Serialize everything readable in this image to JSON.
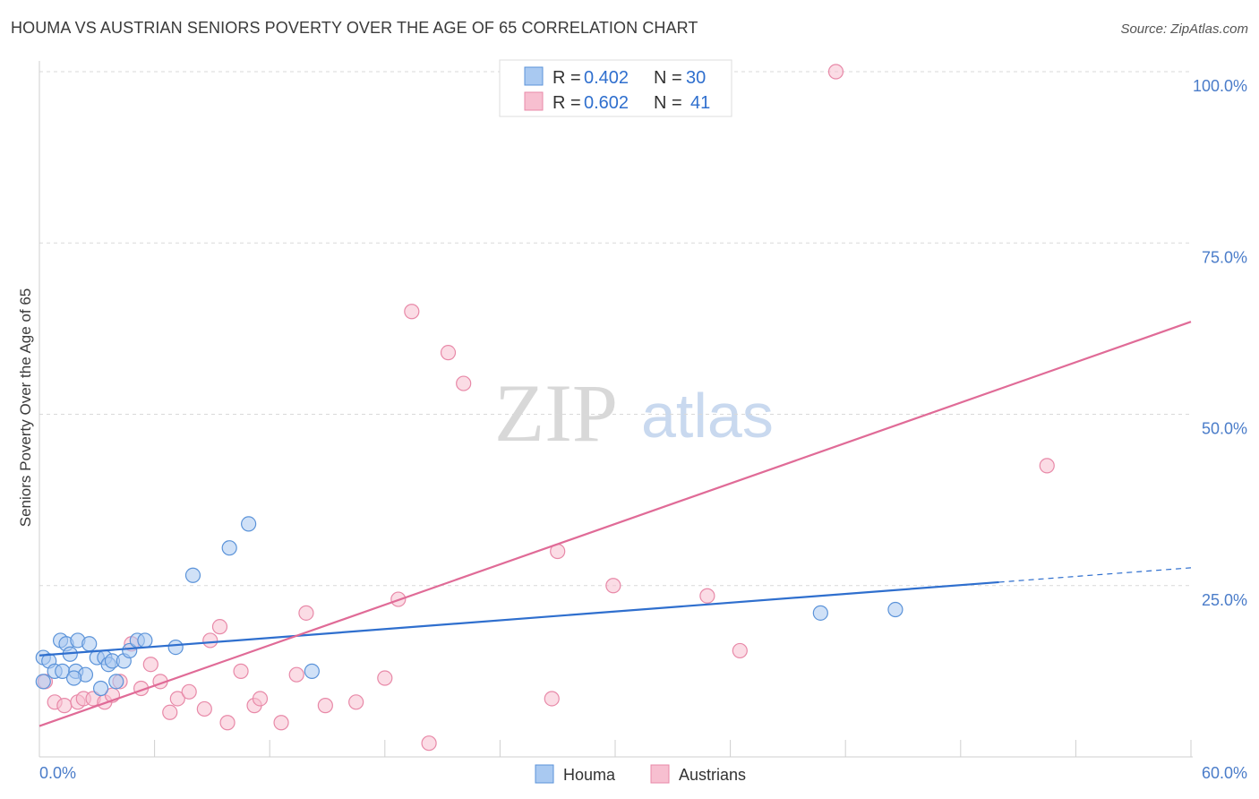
{
  "header": {
    "title": "HOUMA VS AUSTRIAN SENIORS POVERTY OVER THE AGE OF 65 CORRELATION CHART",
    "source": "Source: ZipAtlas.com"
  },
  "colors": {
    "houma_fill": "#a9c9f1",
    "houma_stroke": "#5b93d9",
    "houma_line": "#2f6fce",
    "austrians_fill": "#f7bfd0",
    "austrians_stroke": "#e889a8",
    "austrians_line": "#e06b97",
    "grid": "#d9d9d9",
    "tick_text": "#4a7cc9"
  },
  "legend": {
    "houma": {
      "r_label": "R = ",
      "r_value": "0.402",
      "n_label": "N = ",
      "n_value": "30"
    },
    "austrians": {
      "r_label": "R = ",
      "r_value": "0.602",
      "n_label": "N = ",
      "n_value": "41"
    }
  },
  "watermark": {
    "zip": "ZIP",
    "atlas": "atlas"
  },
  "chart_data": {
    "type": "scatter",
    "title": "HOUMA VS AUSTRIAN SENIORS POVERTY OVER THE AGE OF 65 CORRELATION CHART",
    "xlabel": "",
    "ylabel": "Seniors Poverty Over the Age of 65",
    "xlim": [
      0,
      60
    ],
    "ylim": [
      0,
      100
    ],
    "x_tick_labels": [
      "0.0%",
      "60.0%"
    ],
    "y_ticks": [
      25,
      50,
      75,
      100
    ],
    "y_tick_labels": [
      "25.0%",
      "50.0%",
      "75.0%",
      "100.0%"
    ],
    "grid": true,
    "legend_position": "top-center",
    "series": [
      {
        "name": "Houma",
        "r": 0.402,
        "n": 30,
        "points": [
          [
            0.2,
            14.5
          ],
          [
            0.5,
            14.0
          ],
          [
            0.8,
            12.5
          ],
          [
            1.1,
            17.0
          ],
          [
            1.2,
            12.5
          ],
          [
            1.4,
            16.5
          ],
          [
            1.6,
            15.0
          ],
          [
            1.9,
            12.5
          ],
          [
            2.0,
            17.0
          ],
          [
            2.4,
            12.0
          ],
          [
            2.6,
            16.5
          ],
          [
            3.0,
            14.5
          ],
          [
            3.2,
            10.0
          ],
          [
            3.4,
            14.5
          ],
          [
            3.6,
            13.5
          ],
          [
            3.8,
            14.0
          ],
          [
            4.0,
            11.0
          ],
          [
            4.4,
            14.0
          ],
          [
            4.7,
            15.5
          ],
          [
            5.1,
            17.0
          ],
          [
            5.5,
            17.0
          ],
          [
            7.1,
            16.0
          ],
          [
            8.0,
            26.5
          ],
          [
            9.9,
            30.5
          ],
          [
            10.9,
            34.0
          ],
          [
            14.2,
            12.5
          ],
          [
            40.7,
            21.0
          ],
          [
            44.6,
            21.5
          ],
          [
            0.2,
            11.0
          ],
          [
            1.8,
            11.5
          ]
        ],
        "trend": {
          "x0": 0,
          "y0": 14.8,
          "x1": 50.0,
          "y1": 25.5,
          "dashed_to_x": 60,
          "dashed_to_y": 27.6
        }
      },
      {
        "name": "Austrians",
        "r": 0.602,
        "n": 41,
        "points": [
          [
            0.3,
            11.0
          ],
          [
            0.8,
            8.0
          ],
          [
            1.3,
            7.5
          ],
          [
            2.0,
            8.0
          ],
          [
            2.3,
            8.5
          ],
          [
            2.8,
            8.5
          ],
          [
            3.4,
            8.0
          ],
          [
            3.8,
            9.0
          ],
          [
            4.2,
            11.0
          ],
          [
            4.8,
            16.5
          ],
          [
            5.3,
            10.0
          ],
          [
            5.8,
            13.5
          ],
          [
            6.3,
            11.0
          ],
          [
            6.8,
            6.5
          ],
          [
            7.2,
            8.5
          ],
          [
            7.8,
            9.5
          ],
          [
            8.6,
            7.0
          ],
          [
            8.9,
            17.0
          ],
          [
            9.4,
            19.0
          ],
          [
            9.8,
            5.0
          ],
          [
            10.5,
            12.5
          ],
          [
            11.2,
            7.5
          ],
          [
            11.5,
            8.5
          ],
          [
            12.6,
            5.0
          ],
          [
            13.4,
            12.0
          ],
          [
            13.9,
            21.0
          ],
          [
            14.9,
            7.5
          ],
          [
            16.5,
            8.0
          ],
          [
            18.0,
            11.5
          ],
          [
            18.7,
            23.0
          ],
          [
            19.4,
            65.0
          ],
          [
            20.3,
            2.0
          ],
          [
            21.3,
            59.0
          ],
          [
            22.1,
            54.5
          ],
          [
            26.7,
            8.5
          ],
          [
            27.0,
            30.0
          ],
          [
            29.9,
            25.0
          ],
          [
            34.8,
            23.5
          ],
          [
            36.5,
            15.5
          ],
          [
            41.5,
            100.0
          ],
          [
            52.5,
            42.5
          ]
        ],
        "trend": {
          "x0": 0,
          "y0": 4.5,
          "x1": 60,
          "y1": 63.5
        }
      }
    ]
  },
  "bottom_legend": {
    "houma": "Houma",
    "austrians": "Austrians"
  }
}
